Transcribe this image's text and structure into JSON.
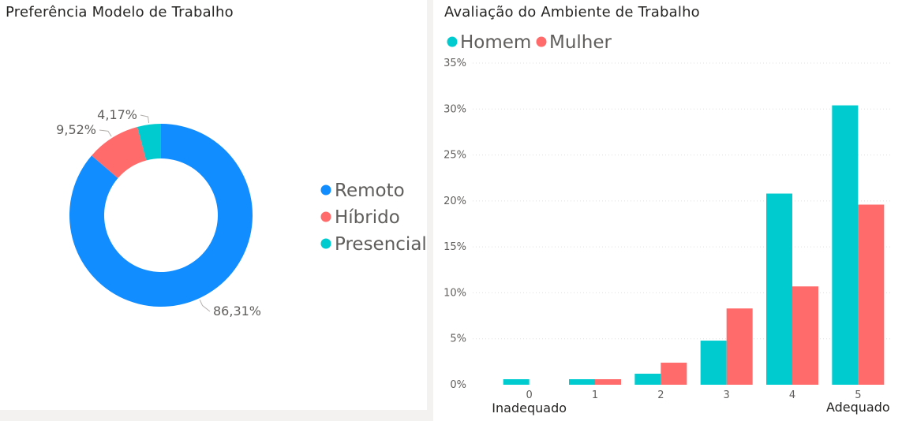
{
  "left_panel": {
    "title": "Preferência Modelo de Trabalho"
  },
  "right_panel": {
    "title": "Avaliação do Ambiente de Trabalho"
  },
  "colors": {
    "remoto": "#118dff",
    "hibrido": "#ff6b6b",
    "presencial": "#00ccd0",
    "homem": "#00ccd0",
    "mulher": "#ff6b6b"
  },
  "chart_data": [
    {
      "type": "pie",
      "title": "Preferência Modelo de Trabalho",
      "variant": "donut",
      "legend_position": "right",
      "slices": [
        {
          "name": "Remoto",
          "value": 86.31,
          "label": "86,31%",
          "color": "#118dff"
        },
        {
          "name": "Híbrido",
          "value": 9.52,
          "label": "9,52%",
          "color": "#ff6b6b"
        },
        {
          "name": "Presencial",
          "value": 4.17,
          "label": "4,17%",
          "color": "#00ccd0"
        }
      ]
    },
    {
      "type": "bar",
      "title": "Avaliação do Ambiente de Trabalho",
      "legend_position": "top-left",
      "categories": [
        "0",
        "1",
        "2",
        "3",
        "4",
        "5"
      ],
      "x_end_labels": {
        "left": "Inadequado",
        "right": "Adequado"
      },
      "ylim": [
        0,
        35
      ],
      "yticks": [
        0,
        5,
        10,
        15,
        20,
        25,
        30,
        35
      ],
      "ytick_labels": [
        "0%",
        "5%",
        "10%",
        "15%",
        "20%",
        "25%",
        "30%",
        "35%"
      ],
      "grid": true,
      "series": [
        {
          "name": "Homem",
          "color": "#00ccd0",
          "values": [
            0.6,
            0.6,
            1.2,
            4.8,
            20.8,
            30.4
          ]
        },
        {
          "name": "Mulher",
          "color": "#ff6b6b",
          "values": [
            0,
            0.6,
            2.4,
            8.3,
            10.7,
            19.6
          ]
        }
      ]
    }
  ]
}
